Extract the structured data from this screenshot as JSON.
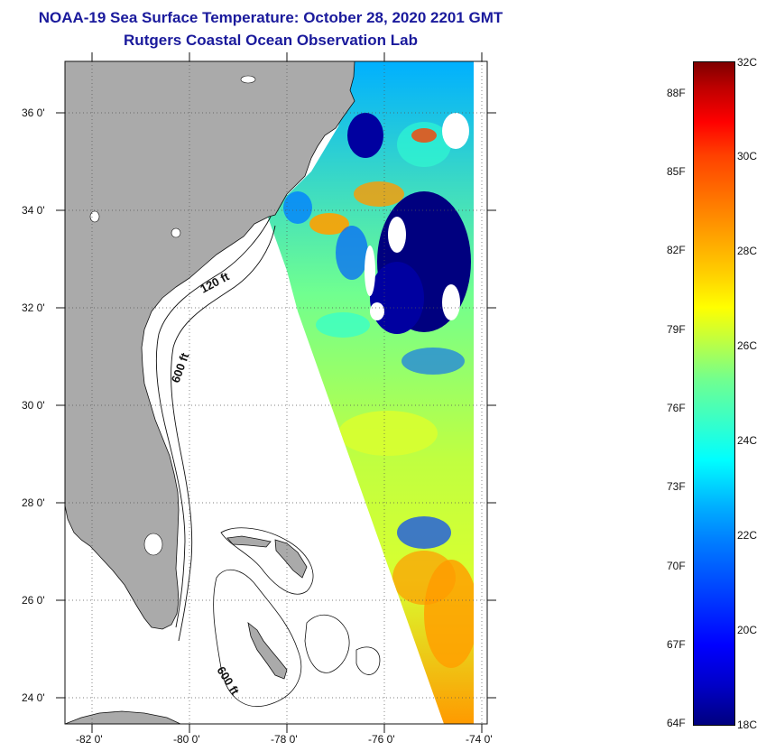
{
  "title": {
    "line1": "NOAA-19 Sea Surface Temperature:  October 28, 2020 2201 GMT",
    "line2": "Rutgers Coastal Ocean Observation Lab"
  },
  "map": {
    "lat_labels": [
      "36 0'",
      "34 0'",
      "32 0'",
      "30 0'",
      "28 0'",
      "26 0'",
      "24 0'"
    ],
    "lon_labels": [
      "-82 0'",
      "-80 0'",
      "-78 0'",
      "-76 0'",
      "-74 0'"
    ],
    "contour_labels": [
      "120 ft",
      "600 ft",
      "600 ft"
    ],
    "land_color": "#aaaaaa"
  },
  "colorbar": {
    "celsius_labels": [
      "32C",
      "30C",
      "28C",
      "26C",
      "24C",
      "22C",
      "20C",
      "18C"
    ],
    "fahrenheit_labels": [
      "88F",
      "85F",
      "82F",
      "79F",
      "76F",
      "73F",
      "70F",
      "67F",
      "64F"
    ]
  }
}
